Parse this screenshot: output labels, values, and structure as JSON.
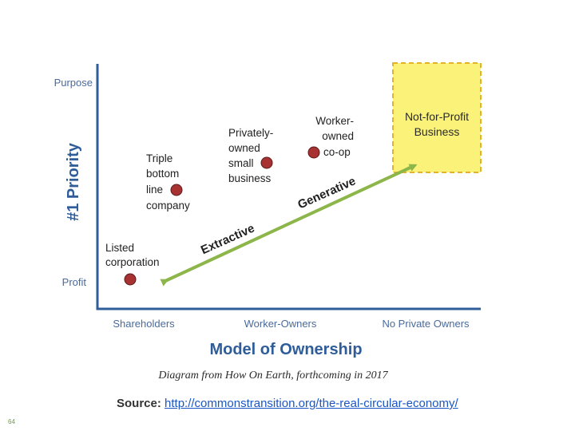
{
  "axes": {
    "y_title": "#1 Priority",
    "y_ticks": [
      "Purpose",
      "Profit"
    ],
    "x_title": "Model of Ownership",
    "x_ticks": [
      "Shareholders",
      "Worker-Owners",
      "No Private Owners"
    ]
  },
  "entities": {
    "listed": [
      "Listed",
      "corporation"
    ],
    "triple": [
      "Triple",
      "bottom",
      "line",
      "company"
    ],
    "private": [
      "Privately-",
      "owned",
      "small",
      "business"
    ],
    "coop": [
      "Worker-",
      "owned",
      "co-op"
    ]
  },
  "nonprofit": [
    "Not-for-Profit",
    "Business"
  ],
  "arrow": {
    "extractive": "Extractive",
    "generative": "Generative",
    "color": "#8db64a"
  },
  "caption": "Diagram from How On Earth, forthcoming in 2017",
  "source": {
    "label": "Source:",
    "url": "http://commonstransition.org/the-real-circular-economy/"
  },
  "page_number": "64",
  "colors": {
    "axis": "#2f5d9a",
    "dot": "#a83232",
    "box_fill": "#fbf27a",
    "box_border": "#e4b32a"
  }
}
